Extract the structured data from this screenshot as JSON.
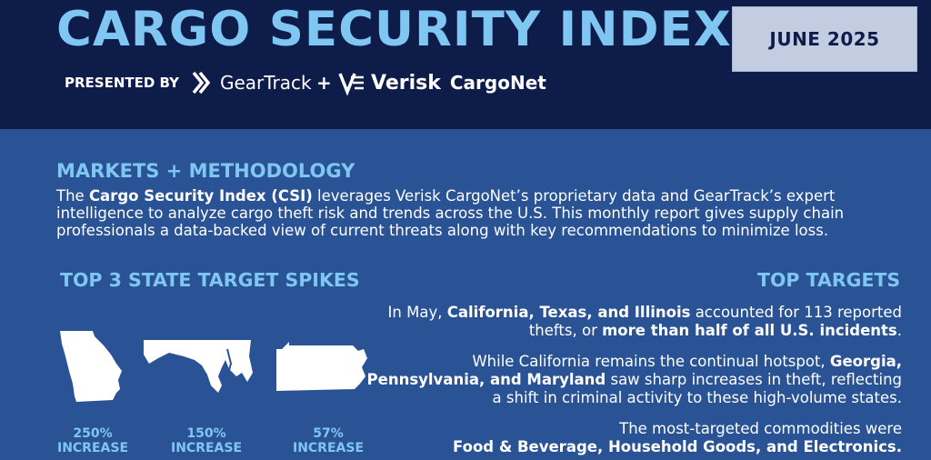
{
  "header": {
    "title": "CARGO SECURITY INDEX",
    "presented_by": "PRESENTED BY",
    "plus": "+",
    "date": "JUNE 2025",
    "logos": {
      "geartrack": "GearTrack",
      "verisk": "Verisk",
      "cargonet": "CargoNet"
    }
  },
  "methodology": {
    "title": "MARKETS + METHODOLOGY",
    "text_1": "The ",
    "bold_1": "Cargo Security Index (CSI)",
    "text_2": " leverages Verisk CargoNet’s proprietary data and GearTrack’s expert intelligence to analyze cargo theft risk and trends across the U.S. This monthly report gives supply chain professionals a data-backed view of current threats along with key recommendations to minimize loss."
  },
  "spikes": {
    "title": "TOP 3 STATE TARGET SPIKES",
    "states": [
      {
        "name": "Georgia",
        "pct": "250%",
        "label": "INCREASE",
        "icon": "georgia-map-icon"
      },
      {
        "name": "Maryland",
        "pct": "150%",
        "label": "INCREASE",
        "icon": "maryland-map-icon"
      },
      {
        "name": "Pennsylvania",
        "pct": "57%",
        "label": "INCREASE",
        "icon": "pennsylvania-map-icon"
      }
    ]
  },
  "targets": {
    "title": "TOP TARGETS",
    "p1_a": "In May, ",
    "p1_b": "California, Texas, and Illinois",
    "p1_c": " accounted for 113 reported thefts, or ",
    "p1_d": "more than half of all U.S. incidents",
    "p1_e": ".",
    "p2_a": "While California remains the continual hotspot, ",
    "p2_b": "Georgia, Pennsylvania, and Maryland",
    "p2_c": " saw sharp increases in theft, reflecting a shift in criminal activity to these high-volume states.",
    "p3_a": "The most-targeted commodities were",
    "p3_b": "Food & Beverage, Household Goods, and Electronics."
  },
  "colors": {
    "header_bg": "#0e1c4a",
    "body_bg": "#2a5395",
    "accent": "#7fc7f2",
    "date_box": "#c3cde2"
  }
}
